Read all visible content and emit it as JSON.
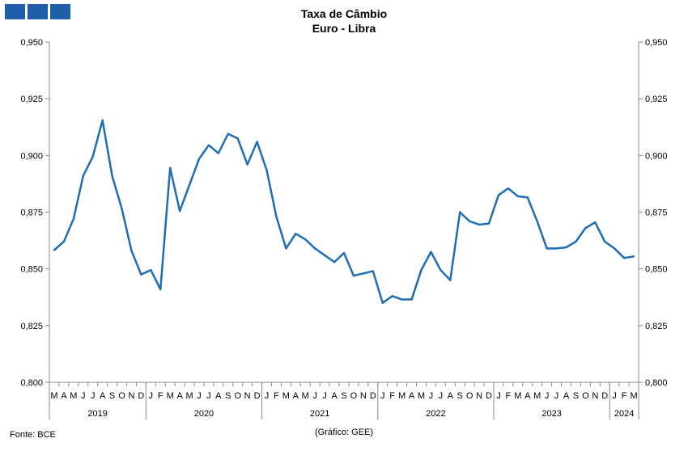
{
  "header": {
    "logo_icon": "gee-logo-icon",
    "title": "Taxa de Câmbio",
    "subtitle": "Euro - Libra"
  },
  "footer": {
    "source": "Fonte: BCE",
    "credit": "(Gráfico: GEE)"
  },
  "chart_data": {
    "type": "line",
    "title": "Taxa de Câmbio",
    "subtitle": "Euro - Libra",
    "xlabel": "",
    "ylabel": "",
    "ylim": [
      0.8,
      0.95
    ],
    "y_ticks": [
      "0,800",
      "0,825",
      "0,850",
      "0,875",
      "0,900",
      "0,925",
      "0,950"
    ],
    "secondary_y_axis": true,
    "grid": false,
    "color": "#1f6db5",
    "month_labels": [
      "M",
      "A",
      "M",
      "J",
      "J",
      "A",
      "S",
      "O",
      "N",
      "D",
      "J",
      "F",
      "M",
      "A",
      "M",
      "J",
      "J",
      "A",
      "S",
      "O",
      "N",
      "D",
      "J",
      "F",
      "M",
      "A",
      "M",
      "J",
      "J",
      "A",
      "S",
      "O",
      "N",
      "D",
      "J",
      "F",
      "M",
      "A",
      "M",
      "J",
      "J",
      "A",
      "S",
      "O",
      "N",
      "D",
      "J",
      "F",
      "M",
      "A",
      "M",
      "J",
      "J",
      "A",
      "S",
      "O",
      "N",
      "D",
      "J",
      "F",
      "M"
    ],
    "years": [
      {
        "label": "2019",
        "months": 10
      },
      {
        "label": "2020",
        "months": 12
      },
      {
        "label": "2021",
        "months": 12
      },
      {
        "label": "2022",
        "months": 12
      },
      {
        "label": "2023",
        "months": 12
      },
      {
        "label": "2024",
        "months": 3
      }
    ],
    "series": [
      {
        "values": [
          0.8583,
          0.862,
          0.872,
          0.891,
          0.8995,
          0.9155,
          0.891,
          0.8765,
          0.858,
          0.8475,
          0.8495,
          0.841,
          0.8945,
          0.8755,
          0.887,
          0.8985,
          0.9045,
          0.901,
          0.9095,
          0.9075,
          0.896,
          0.906,
          0.8935,
          0.873,
          0.859,
          0.8655,
          0.863,
          0.859,
          0.856,
          0.853,
          0.857,
          0.847,
          0.848,
          0.849,
          0.835,
          0.838,
          0.8365,
          0.8365,
          0.8495,
          0.8575,
          0.8495,
          0.845,
          0.875,
          0.871,
          0.8695,
          0.87,
          0.8825,
          0.8855,
          0.882,
          0.8815,
          0.871,
          0.859,
          0.859,
          0.8595,
          0.862,
          0.868,
          0.8705,
          0.862,
          0.859,
          0.8548,
          0.8555
        ]
      }
    ]
  }
}
